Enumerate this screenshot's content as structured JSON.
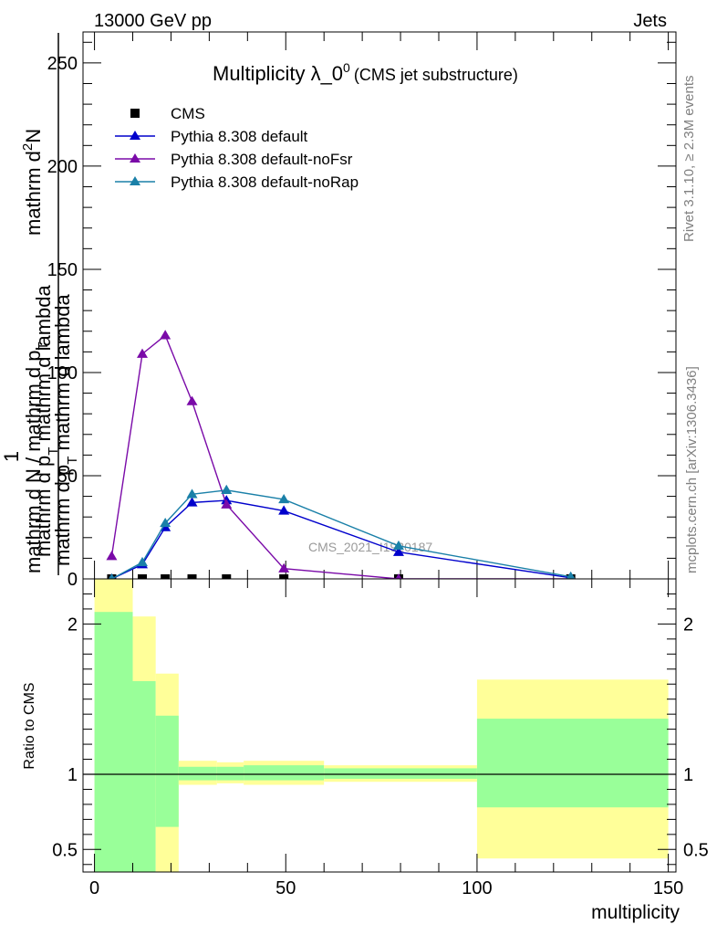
{
  "header": {
    "left": "13000 GeV pp",
    "right": "Jets"
  },
  "side_labels": {
    "rivet": "Rivet 3.1.10, ≥ 2.3M events",
    "mcplots": "mcplots.cern.ch [arXiv:1306.3436]"
  },
  "chart_data": [
    {
      "type": "line",
      "title": "Multiplicity λ_0",
      "title_sup": "0",
      "subtitle": "(CMS jet substructure)",
      "watermark": "CMS_2021_I1920187",
      "ylabel": {
        "prefix": "1",
        "main": "mathrm d N / mathrm d p",
        "sub": "T",
        "numerator_pre": "mathrm d",
        "numerator_sup": "2",
        "numerator_post": "N",
        "denominator_main": "mathrm d p",
        "denominator_sub": "T",
        "denominator_post": " mathrm d lambda"
      },
      "xlim": [
        -3,
        152
      ],
      "ylim": [
        0,
        265
      ],
      "yticks": [
        0,
        50,
        100,
        150,
        200,
        250
      ],
      "x": [
        4.5,
        12.5,
        18.5,
        25.5,
        34.5,
        49.5,
        79.5,
        124.5
      ],
      "series": [
        {
          "name": "CMS",
          "color": "#000000",
          "marker": "square",
          "line": false,
          "values": [
            0,
            0,
            0,
            0,
            0,
            0,
            0,
            0
          ]
        },
        {
          "name": "Pythia 8.308 default",
          "color": "#0000cc",
          "marker": "triangle",
          "line": true,
          "values": [
            0,
            7,
            25,
            37,
            38,
            33,
            13,
            0.5
          ]
        },
        {
          "name": "Pythia 8.308 default-noFsr",
          "color": "#7a0aa8",
          "marker": "triangle",
          "line": true,
          "values": [
            11,
            109,
            118,
            86,
            36,
            5,
            0,
            0
          ]
        },
        {
          "name": "Pythia 8.308 default-noRap",
          "color": "#1a80a8",
          "marker": "triangle",
          "line": true,
          "values": [
            0,
            8,
            27,
            41,
            43,
            38.5,
            16,
            1
          ]
        }
      ]
    },
    {
      "type": "area",
      "ylabel": "Ratio to CMS",
      "xlabel": "multiplicity",
      "xlim": [
        -3,
        152
      ],
      "ylim": [
        0.35,
        2.3
      ],
      "yticks": [
        0.5,
        1,
        2
      ],
      "xticks": [
        0,
        50,
        100,
        150
      ],
      "reference_line": 1,
      "bands": [
        {
          "x0": 0,
          "x1": 10,
          "green": [
            0.35,
            2.08
          ],
          "yellow": [
            0.35,
            2.3
          ]
        },
        {
          "x0": 10,
          "x1": 16,
          "green": [
            0.35,
            1.62
          ],
          "yellow": [
            0.45,
            2.05
          ]
        },
        {
          "x0": 16,
          "x1": 22,
          "green": [
            0.65,
            1.39
          ],
          "yellow": [
            0.35,
            1.67
          ]
        },
        {
          "x0": 22,
          "x1": 32,
          "green": [
            0.96,
            1.05
          ],
          "yellow": [
            0.93,
            1.09
          ]
        },
        {
          "x0": 32,
          "x1": 39,
          "green": [
            0.96,
            1.05
          ],
          "yellow": [
            0.94,
            1.08
          ]
        },
        {
          "x0": 39,
          "x1": 60,
          "green": [
            0.96,
            1.06
          ],
          "yellow": [
            0.93,
            1.09
          ]
        },
        {
          "x0": 60,
          "x1": 100,
          "green": [
            0.97,
            1.04
          ],
          "yellow": [
            0.95,
            1.06
          ]
        },
        {
          "x0": 100,
          "x1": 150,
          "green": [
            0.78,
            1.37
          ],
          "yellow": [
            0.44,
            1.63
          ]
        }
      ],
      "colors": {
        "green": "#99ff99",
        "yellow": "#ffff99"
      }
    }
  ]
}
